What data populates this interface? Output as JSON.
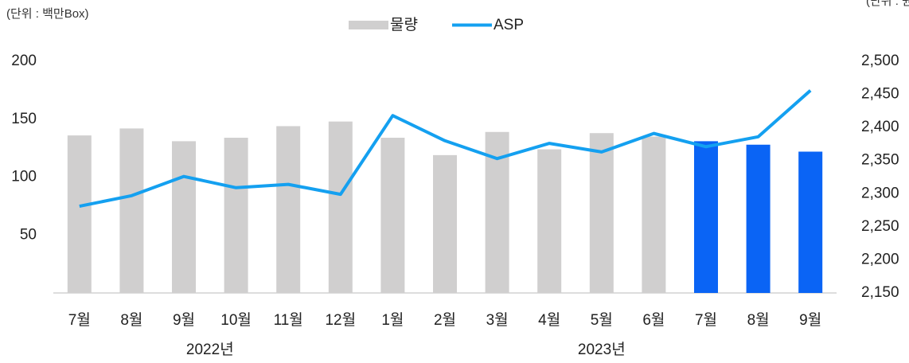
{
  "chart_data": {
    "type": "bar_line",
    "unit_left": "(단위 : 백만Box)",
    "unit_right": "(단위 : 원)",
    "categories": [
      "7월",
      "8월",
      "9월",
      "10월",
      "11월",
      "12월",
      "1월",
      "2월",
      "3월",
      "4월",
      "5월",
      "6월",
      "7월",
      "8월",
      "9월"
    ],
    "groups": [
      {
        "label": "2022년",
        "span": 6
      },
      {
        "label": "2023년",
        "span": 9
      }
    ],
    "series": [
      {
        "name": "물량",
        "type": "bar",
        "color": "#d0cfcf",
        "colors": [
          "#d0cfcf",
          "#d0cfcf",
          "#d0cfcf",
          "#d0cfcf",
          "#d0cfcf",
          "#d0cfcf",
          "#d0cfcf",
          "#d0cfcf",
          "#d0cfcf",
          "#d0cfcf",
          "#d0cfcf",
          "#d0cfcf",
          "#0a64f5",
          "#0a64f5",
          "#0a64f5"
        ],
        "values": [
          136,
          142,
          131,
          134,
          144,
          148,
          134,
          119,
          139,
          124,
          138,
          135,
          131,
          128,
          122
        ]
      },
      {
        "name": "ASP",
        "type": "line",
        "axis": "y2",
        "color": "#14a0f0",
        "values": [
          2281,
          2297,
          2326,
          2309,
          2314,
          2299,
          2418,
          2380,
          2353,
          2376,
          2363,
          2391,
          2371,
          2386,
          2456
        ]
      }
    ],
    "ylim": [
      0,
      200
    ],
    "yticks": [
      50,
      100,
      150,
      200
    ],
    "y2lim": [
      2150,
      2500
    ],
    "y2ticks": [
      {
        "value": 2150,
        "label": "2,150"
      },
      {
        "value": 2200,
        "label": "2,200"
      },
      {
        "value": 2250,
        "label": "2,250"
      },
      {
        "value": 2300,
        "label": "2,300"
      },
      {
        "value": 2350,
        "label": "2,350"
      },
      {
        "value": 2400,
        "label": "2,400"
      },
      {
        "value": 2450,
        "label": "2,450"
      },
      {
        "value": 2500,
        "label": "2,500"
      }
    ],
    "legend": "top",
    "grid": false
  }
}
